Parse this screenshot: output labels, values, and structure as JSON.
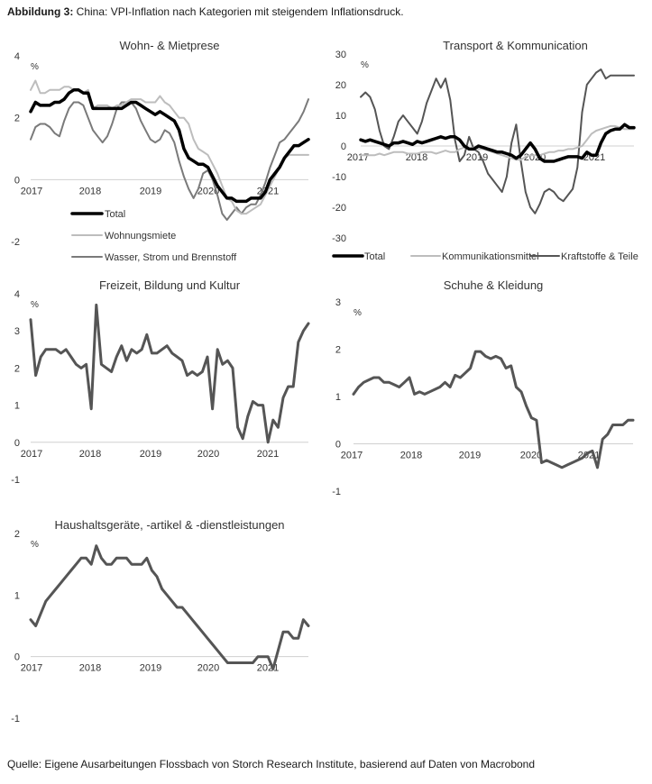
{
  "figure": {
    "label": "Abbildung 3:",
    "title": "China: VPI-Inflation nach Kategorien mit steigendem Inflationsdruck.",
    "source": "Quelle: Eigene Ausarbeitungen Flossbach von Storch Research Institute, basierend auf Daten von Macrobond"
  },
  "chart_data": [
    {
      "id": "wohnen",
      "type": "line",
      "title": "Wohn- & Mietprese",
      "unit": "%",
      "x_ticks": [
        "2017",
        "2018",
        "2019",
        "2020",
        "2021"
      ],
      "ylim": [
        -2,
        4
      ],
      "y_ticks": [
        4,
        2,
        0,
        -2
      ],
      "legend_position": "bottom-left",
      "series": [
        {
          "name": "Total",
          "color": "#000000",
          "width": 3.5,
          "values": [
            2.2,
            2.5,
            2.4,
            2.4,
            2.4,
            2.5,
            2.5,
            2.6,
            2.8,
            2.9,
            2.9,
            2.8,
            2.8,
            2.3,
            2.3,
            2.3,
            2.3,
            2.3,
            2.3,
            2.3,
            2.4,
            2.5,
            2.5,
            2.4,
            2.3,
            2.2,
            2.1,
            2.2,
            2.1,
            2.0,
            1.9,
            1.6,
            1.0,
            0.7,
            0.6,
            0.5,
            0.5,
            0.4,
            0.1,
            -0.2,
            -0.4,
            -0.6,
            -0.6,
            -0.7,
            -0.7,
            -0.7,
            -0.6,
            -0.6,
            -0.6,
            -0.4,
            0.0,
            0.2,
            0.4,
            0.7,
            0.9,
            1.1,
            1.1,
            1.2,
            1.3
          ]
        },
        {
          "name": "Wohnungsmiete",
          "color": "#bdbdbd",
          "width": 2,
          "values": [
            2.9,
            3.2,
            2.8,
            2.8,
            2.9,
            2.9,
            2.9,
            3.0,
            3.0,
            2.9,
            2.9,
            2.8,
            2.9,
            2.3,
            2.4,
            2.4,
            2.4,
            2.3,
            2.4,
            2.4,
            2.5,
            2.6,
            2.6,
            2.6,
            2.5,
            2.5,
            2.5,
            2.7,
            2.5,
            2.4,
            2.2,
            2.0,
            2.0,
            1.8,
            1.3,
            1.0,
            0.9,
            0.8,
            0.5,
            0.2,
            -0.2,
            -0.6,
            -0.7,
            -1.0,
            -1.1,
            -1.1,
            -1.0,
            -0.9,
            -0.8,
            -0.5,
            -0.2,
            0.1,
            0.4,
            0.7,
            0.8,
            0.8,
            0.8,
            0.8,
            0.8
          ]
        },
        {
          "name": "Wasser, Strom und Brennstoff",
          "color": "#7a7a7a",
          "width": 2,
          "values": [
            1.3,
            1.7,
            1.8,
            1.8,
            1.7,
            1.5,
            1.4,
            1.9,
            2.3,
            2.5,
            2.5,
            2.4,
            2.0,
            1.6,
            1.4,
            1.2,
            1.4,
            1.8,
            2.3,
            2.5,
            2.5,
            2.5,
            2.3,
            1.9,
            1.6,
            1.3,
            1.2,
            1.3,
            1.6,
            1.5,
            1.2,
            0.6,
            0.1,
            -0.3,
            -0.6,
            -0.3,
            0.2,
            0.3,
            0.0,
            -0.5,
            -1.1,
            -1.3,
            -1.1,
            -0.9,
            -1.1,
            -0.9,
            -0.8,
            -0.8,
            -0.5,
            -0.1,
            0.4,
            0.8,
            1.2,
            1.3,
            1.5,
            1.7,
            1.9,
            2.2,
            2.6
          ]
        }
      ]
    },
    {
      "id": "transport",
      "type": "line",
      "title": "Transport & Kommunication",
      "unit": "%",
      "x_ticks": [
        "2017",
        "2018",
        "2019",
        "2020",
        "2021"
      ],
      "ylim": [
        -30,
        30
      ],
      "y_ticks": [
        30,
        20,
        10,
        0,
        -10,
        -20,
        -30
      ],
      "legend_position": "bottom",
      "series": [
        {
          "name": "Total",
          "color": "#000000",
          "width": 3.5,
          "values": [
            2,
            1.5,
            2,
            1.5,
            1,
            0.5,
            0,
            1,
            1,
            1.5,
            1,
            0.5,
            1.5,
            1,
            1.5,
            2,
            2.5,
            3,
            2.5,
            3,
            3,
            2,
            0,
            -1,
            -1,
            0,
            -0.5,
            -1,
            -1.5,
            -2,
            -2,
            -2.5,
            -3,
            -4,
            -3,
            -1,
            1,
            -1,
            -4,
            -5,
            -5,
            -5,
            -4.5,
            -4,
            -3.5,
            -3.5,
            -3.5,
            -4,
            -2,
            -3,
            -3,
            1,
            4,
            5,
            5.5,
            5.5,
            7,
            6,
            6
          ]
        },
        {
          "name": "Kommunikationsmittel",
          "color": "#bdbdbd",
          "width": 2,
          "values": [
            -3,
            -3,
            -3,
            -3,
            -2.5,
            -3,
            -2.5,
            -2,
            -2,
            -2,
            -2.5,
            -2.5,
            -2.5,
            -2,
            -2,
            -2,
            -2.5,
            -2,
            -1.5,
            -2,
            -2,
            -1,
            -0.5,
            -1,
            -0.5,
            -1,
            -1,
            -1.5,
            -2,
            -2.5,
            -3,
            -3.5,
            -4,
            -4.5,
            -4.5,
            -3.5,
            -3,
            -3,
            -3,
            -2.5,
            -2,
            -2,
            -1.5,
            -1.5,
            -1,
            -1,
            -0.5,
            0,
            2,
            4,
            5,
            5.5,
            6,
            6.5,
            6.5,
            6,
            5.5,
            5.5,
            5.5
          ]
        },
        {
          "name": "Kraftstoffe & Teile",
          "color": "#555555",
          "width": 2,
          "values": [
            16,
            17.5,
            16,
            12,
            5,
            0,
            -1,
            3,
            8,
            10,
            8,
            6,
            4,
            8,
            14,
            18,
            22,
            19,
            22,
            15,
            2,
            -5,
            -3,
            3,
            -1,
            -2,
            -5,
            -9,
            -11,
            -13,
            -15,
            -10,
            1,
            7,
            -5,
            -15,
            -20,
            -22,
            -19,
            -15,
            -14,
            -15,
            -17,
            -18,
            -16,
            -14,
            -7,
            11,
            20,
            22,
            24,
            25,
            22,
            23,
            23,
            23,
            23,
            23,
            23
          ]
        }
      ]
    },
    {
      "id": "freizeit",
      "type": "line",
      "title": "Freizeit, Bildung und Kultur",
      "unit": "%",
      "x_ticks": [
        "2017",
        "2018",
        "2019",
        "2020",
        "2021"
      ],
      "ylim": [
        -1,
        4
      ],
      "y_ticks": [
        4,
        3,
        2,
        1,
        0,
        -1
      ],
      "series": [
        {
          "name": "",
          "color": "#555555",
          "width": 3,
          "values": [
            3.3,
            1.8,
            2.3,
            2.5,
            2.5,
            2.5,
            2.4,
            2.5,
            2.3,
            2.1,
            2.0,
            2.1,
            0.9,
            3.7,
            2.1,
            2.0,
            1.9,
            2.3,
            2.6,
            2.2,
            2.5,
            2.4,
            2.5,
            2.9,
            2.4,
            2.4,
            2.5,
            2.6,
            2.4,
            2.3,
            2.2,
            1.8,
            1.9,
            1.8,
            1.9,
            2.3,
            0.9,
            2.5,
            2.1,
            2.2,
            2.0,
            0.4,
            0.1,
            0.7,
            1.1,
            1.0,
            1.0,
            0.0,
            0.6,
            0.4,
            1.2,
            1.5,
            1.5,
            2.7,
            3.0,
            3.2
          ]
        }
      ]
    },
    {
      "id": "schuhe",
      "type": "line",
      "title": "Schuhe & Kleidung",
      "unit": "%",
      "x_ticks": [
        "2017",
        "2018",
        "2019",
        "2020",
        "2021"
      ],
      "ylim": [
        -1,
        3
      ],
      "y_ticks": [
        3,
        2,
        1,
        0,
        -1
      ],
      "series": [
        {
          "name": "",
          "color": "#555555",
          "width": 3,
          "values": [
            1.05,
            1.2,
            1.3,
            1.35,
            1.4,
            1.4,
            1.3,
            1.3,
            1.25,
            1.2,
            1.3,
            1.4,
            1.05,
            1.1,
            1.05,
            1.1,
            1.15,
            1.2,
            1.3,
            1.2,
            1.45,
            1.4,
            1.5,
            1.6,
            1.95,
            1.95,
            1.85,
            1.8,
            1.85,
            1.8,
            1.6,
            1.65,
            1.2,
            1.1,
            0.8,
            0.55,
            0.5,
            -0.4,
            -0.35,
            -0.4,
            -0.45,
            -0.5,
            -0.45,
            -0.4,
            -0.35,
            -0.3,
            -0.2,
            -0.15,
            -0.5,
            0.1,
            0.2,
            0.4,
            0.4,
            0.4,
            0.5,
            0.5
          ]
        }
      ]
    },
    {
      "id": "haushalt",
      "type": "line",
      "title": "Haushaltsgeräte, -artikel & -dienstleistungen",
      "unit": "%",
      "x_ticks": [
        "2017",
        "2018",
        "2019",
        "2020",
        "2021"
      ],
      "ylim": [
        -1,
        2
      ],
      "y_ticks": [
        2,
        1,
        0,
        -1
      ],
      "series": [
        {
          "name": "",
          "color": "#555555",
          "width": 3,
          "values": [
            0.6,
            0.5,
            0.7,
            0.9,
            1.0,
            1.1,
            1.2,
            1.3,
            1.4,
            1.5,
            1.6,
            1.6,
            1.5,
            1.8,
            1.6,
            1.5,
            1.5,
            1.6,
            1.6,
            1.6,
            1.5,
            1.5,
            1.5,
            1.6,
            1.4,
            1.3,
            1.1,
            1.0,
            0.9,
            0.8,
            0.8,
            0.7,
            0.6,
            0.5,
            0.4,
            0.3,
            0.2,
            0.1,
            0.0,
            -0.1,
            -0.1,
            -0.1,
            -0.1,
            -0.1,
            -0.1,
            0.0,
            0.0,
            0.0,
            -0.2,
            0.1,
            0.4,
            0.4,
            0.3,
            0.3,
            0.6,
            0.5
          ]
        }
      ]
    }
  ]
}
